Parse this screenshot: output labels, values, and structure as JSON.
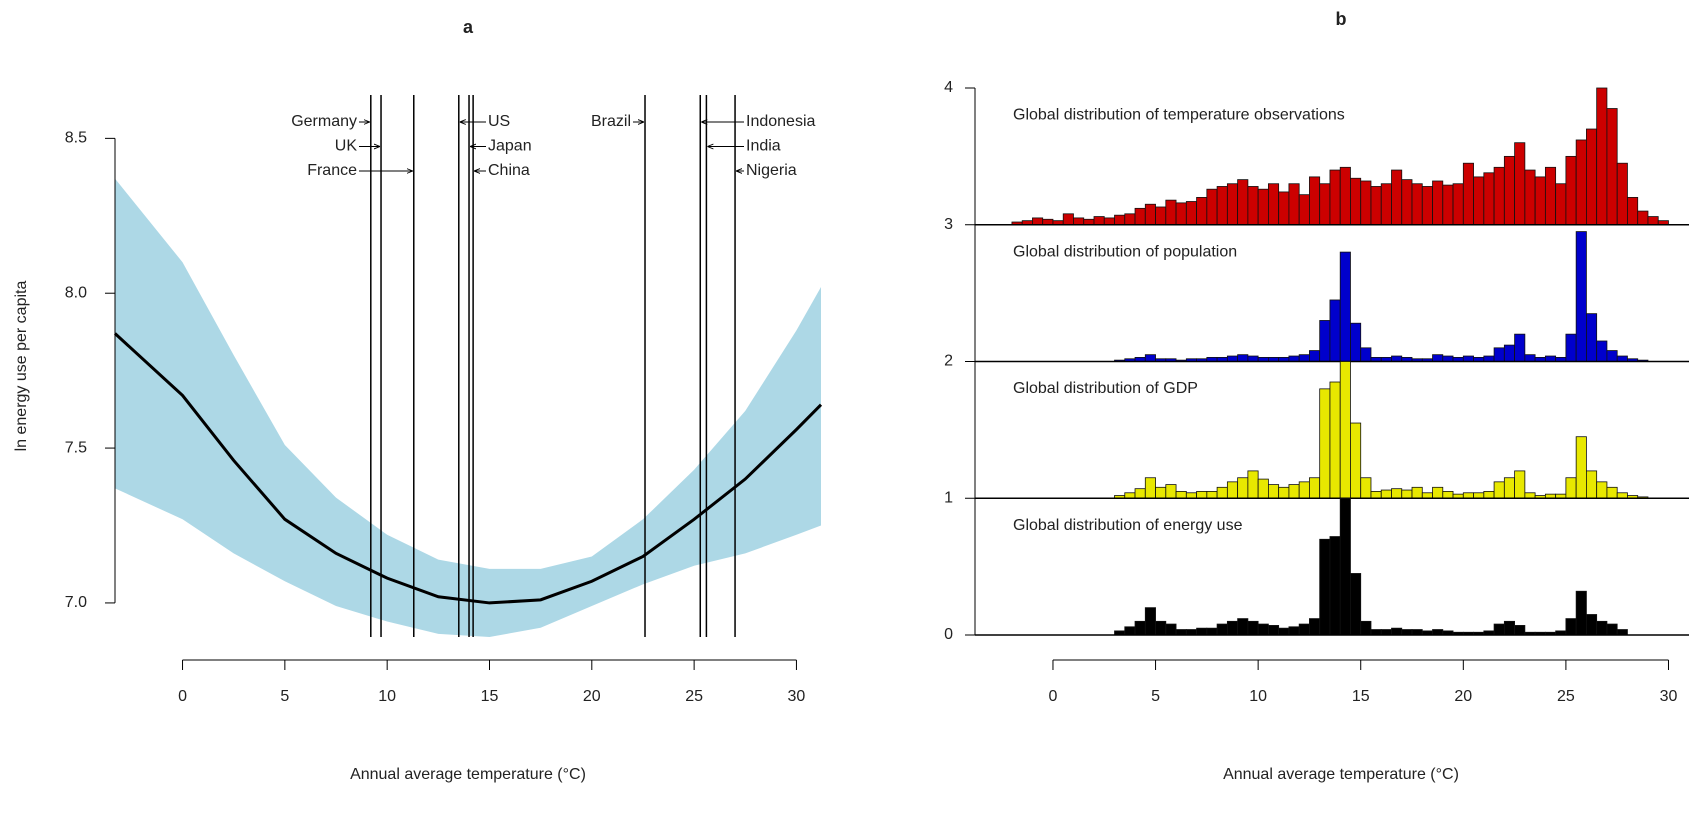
{
  "chart_data": [
    {
      "type": "line",
      "title": "a",
      "x_label": "Annual average temperature (°C)",
      "y_label": "ln energy use per capita",
      "x": [
        -3.3,
        0,
        2.5,
        5,
        7.5,
        10,
        12.5,
        15,
        17.5,
        20,
        22.5,
        25,
        27.5,
        30,
        31.2
      ],
      "values": [
        7.87,
        7.67,
        7.46,
        7.27,
        7.16,
        7.08,
        7.02,
        7.0,
        7.01,
        7.07,
        7.15,
        7.27,
        7.4,
        7.56,
        7.64
      ],
      "lower": [
        7.37,
        7.27,
        7.16,
        7.07,
        6.99,
        6.94,
        6.9,
        6.89,
        6.92,
        6.99,
        7.06,
        7.12,
        7.16,
        7.22,
        7.25
      ],
      "upper": [
        8.37,
        8.1,
        7.8,
        7.51,
        7.34,
        7.22,
        7.14,
        7.11,
        7.11,
        7.15,
        7.27,
        7.43,
        7.62,
        7.88,
        8.02
      ],
      "color": "#000000",
      "band_color": "#add8e6",
      "xlim": [
        -3.3,
        31.2
      ],
      "ylim": [
        6.89,
        8.64
      ],
      "xticks": [
        0,
        5,
        10,
        15,
        20,
        25,
        30
      ],
      "yticks": [
        {
          "value": 7,
          "label": "7.0"
        },
        7.5,
        {
          "value": 8,
          "label": "8.0"
        },
        8.5
      ],
      "markers": [
        {
          "label": "Germany",
          "x": 9.2
        },
        {
          "label": "UK",
          "x": 9.7
        },
        {
          "label": "France",
          "x": 11.3
        },
        {
          "label": "US",
          "x": 13.5
        },
        {
          "label": "Japan",
          "x": 14.0
        },
        {
          "label": "China",
          "x": 14.2
        },
        {
          "label": "Brazil",
          "x": 22.6
        },
        {
          "label": "Indonesia",
          "x": 25.3
        },
        {
          "label": "India",
          "x": 25.6
        },
        {
          "label": "Nigeria",
          "x": 27.0
        }
      ]
    },
    {
      "type": "histogram",
      "title": "b",
      "x_label": "Annual average temperature (°C)",
      "bins": [
        -2,
        -1.5,
        -1,
        -0.5,
        0,
        0.5,
        1,
        1.5,
        2,
        2.5,
        3,
        3.5,
        4,
        4.5,
        5,
        5.5,
        6,
        6.5,
        7,
        7.5,
        8,
        8.5,
        9,
        9.5,
        10,
        10.5,
        11,
        11.5,
        12,
        12.5,
        13,
        13.5,
        14,
        14.5,
        15,
        15.5,
        16,
        16.5,
        17,
        17.5,
        18,
        18.5,
        19,
        19.5,
        20,
        20.5,
        21,
        21.5,
        22,
        22.5,
        23,
        23.5,
        24,
        24.5,
        25,
        25.5,
        26,
        26.5,
        27,
        27.5,
        28,
        28.5,
        29,
        29.5,
        30
      ],
      "series": [
        {
          "name": "Global distribution of temperature observations",
          "color": "#cc0000",
          "baseline": 3,
          "values": [
            0.02,
            0.03,
            0.05,
            0.04,
            0.03,
            0.08,
            0.05,
            0.04,
            0.06,
            0.05,
            0.07,
            0.08,
            0.12,
            0.15,
            0.13,
            0.18,
            0.16,
            0.17,
            0.2,
            0.26,
            0.28,
            0.3,
            0.33,
            0.28,
            0.26,
            0.3,
            0.24,
            0.3,
            0.22,
            0.35,
            0.3,
            0.4,
            0.42,
            0.34,
            0.32,
            0.28,
            0.3,
            0.4,
            0.33,
            0.3,
            0.28,
            0.32,
            0.29,
            0.3,
            0.45,
            0.35,
            0.38,
            0.42,
            0.5,
            0.6,
            0.4,
            0.35,
            0.42,
            0.3,
            0.5,
            0.62,
            0.7,
            1.0,
            0.85,
            0.45,
            0.2,
            0.1,
            0.06,
            0.03
          ]
        },
        {
          "name": "Global distribution of population",
          "color": "#0000cc",
          "baseline": 2,
          "values": [
            0,
            0,
            0,
            0,
            0,
            0,
            0,
            0,
            0,
            0,
            0.01,
            0.02,
            0.03,
            0.05,
            0.02,
            0.02,
            0.01,
            0.02,
            0.02,
            0.03,
            0.03,
            0.04,
            0.05,
            0.04,
            0.03,
            0.03,
            0.03,
            0.04,
            0.05,
            0.08,
            0.3,
            0.45,
            0.8,
            0.28,
            0.1,
            0.03,
            0.03,
            0.04,
            0.03,
            0.02,
            0.02,
            0.05,
            0.04,
            0.03,
            0.04,
            0.03,
            0.04,
            0.1,
            0.12,
            0.2,
            0.05,
            0.03,
            0.04,
            0.03,
            0.2,
            0.95,
            0.35,
            0.15,
            0.08,
            0.04,
            0.02,
            0.01,
            0,
            0
          ]
        },
        {
          "name": "Global distribution of GDP",
          "color": "#e8e800",
          "baseline": 1,
          "values": [
            0,
            0,
            0,
            0,
            0,
            0,
            0,
            0,
            0,
            0,
            0.02,
            0.04,
            0.07,
            0.15,
            0.08,
            0.1,
            0.05,
            0.04,
            0.05,
            0.05,
            0.08,
            0.12,
            0.15,
            0.2,
            0.14,
            0.1,
            0.08,
            0.1,
            0.12,
            0.15,
            0.8,
            0.85,
            1.0,
            0.55,
            0.15,
            0.05,
            0.06,
            0.07,
            0.06,
            0.08,
            0.04,
            0.08,
            0.05,
            0.03,
            0.04,
            0.04,
            0.05,
            0.12,
            0.15,
            0.2,
            0.04,
            0.02,
            0.03,
            0.03,
            0.15,
            0.45,
            0.2,
            0.12,
            0.08,
            0.04,
            0.02,
            0.01,
            0,
            0
          ]
        },
        {
          "name": "Global distribution of energy use",
          "color": "#000000",
          "baseline": 0,
          "values": [
            0,
            0,
            0,
            0,
            0,
            0,
            0,
            0,
            0,
            0,
            0.03,
            0.06,
            0.1,
            0.2,
            0.1,
            0.08,
            0.04,
            0.04,
            0.05,
            0.05,
            0.08,
            0.1,
            0.12,
            0.1,
            0.08,
            0.07,
            0.05,
            0.06,
            0.08,
            0.12,
            0.7,
            0.72,
            1.0,
            0.45,
            0.1,
            0.04,
            0.04,
            0.05,
            0.04,
            0.04,
            0.03,
            0.04,
            0.03,
            0.02,
            0.02,
            0.02,
            0.03,
            0.08,
            0.1,
            0.07,
            0.02,
            0.02,
            0.02,
            0.03,
            0.12,
            0.32,
            0.15,
            0.1,
            0.08,
            0.04,
            0,
            0,
            0,
            0
          ]
        }
      ],
      "xlim": [
        -3.8,
        31
      ],
      "ylim": [
        0,
        4
      ],
      "xticks": [
        0,
        5,
        10,
        15,
        20,
        25,
        30
      ],
      "yticks": [
        0,
        1,
        2,
        3,
        4
      ]
    }
  ]
}
